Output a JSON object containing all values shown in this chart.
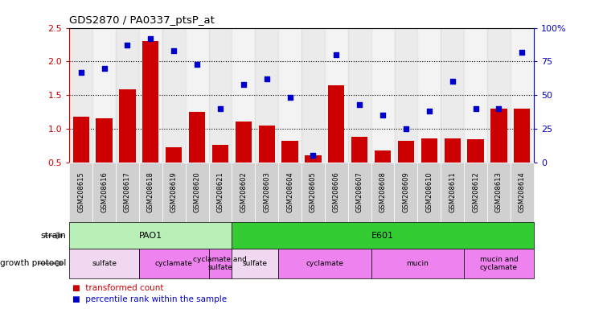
{
  "title": "GDS2870 / PA0337_ptsP_at",
  "samples": [
    "GSM208615",
    "GSM208616",
    "GSM208617",
    "GSM208618",
    "GSM208619",
    "GSM208620",
    "GSM208621",
    "GSM208602",
    "GSM208603",
    "GSM208604",
    "GSM208605",
    "GSM208606",
    "GSM208607",
    "GSM208608",
    "GSM208609",
    "GSM208610",
    "GSM208611",
    "GSM208612",
    "GSM208613",
    "GSM208614"
  ],
  "transformed_count": [
    1.18,
    1.15,
    1.58,
    2.3,
    0.72,
    1.25,
    0.76,
    1.1,
    1.05,
    0.82,
    0.6,
    1.65,
    0.88,
    0.68,
    0.82,
    0.85,
    0.85,
    0.84,
    1.3,
    1.3
  ],
  "percentile_rank": [
    67,
    70,
    87,
    92,
    83,
    73,
    40,
    58,
    62,
    48,
    5,
    80,
    43,
    35,
    25,
    38,
    60,
    40,
    40,
    82
  ],
  "bar_color": "#cc0000",
  "dot_color": "#0000cc",
  "ylim": [
    0.5,
    2.5
  ],
  "y2lim": [
    0,
    100
  ],
  "yticks": [
    0.5,
    1.0,
    1.5,
    2.0,
    2.5
  ],
  "y2ticks": [
    0,
    25,
    50,
    75,
    100
  ],
  "dotted_lines": [
    1.0,
    1.5,
    2.0
  ],
  "strain_row": [
    {
      "label": "PAO1",
      "start": 0,
      "end": 7,
      "color": "#b8f0b8"
    },
    {
      "label": "E601",
      "start": 7,
      "end": 20,
      "color": "#33cc33"
    }
  ],
  "protocol_row": [
    {
      "label": "sulfate",
      "start": 0,
      "end": 3,
      "color": "#f0d8f0"
    },
    {
      "label": "cyclamate",
      "start": 3,
      "end": 6,
      "color": "#ee82ee"
    },
    {
      "label": "cyclamate and\nsulfate",
      "start": 6,
      "end": 7,
      "color": "#ee82ee"
    },
    {
      "label": "sulfate",
      "start": 7,
      "end": 9,
      "color": "#f0d8f0"
    },
    {
      "label": "cyclamate",
      "start": 9,
      "end": 13,
      "color": "#ee82ee"
    },
    {
      "label": "mucin",
      "start": 13,
      "end": 17,
      "color": "#ee82ee"
    },
    {
      "label": "mucin and\ncyclamate",
      "start": 17,
      "end": 20,
      "color": "#ee82ee"
    }
  ],
  "bg_color": "#ffffff",
  "tick_label_color": "#cc0000",
  "tick_label_color2": "#0000cc",
  "fig_width": 7.5,
  "fig_height": 3.84
}
